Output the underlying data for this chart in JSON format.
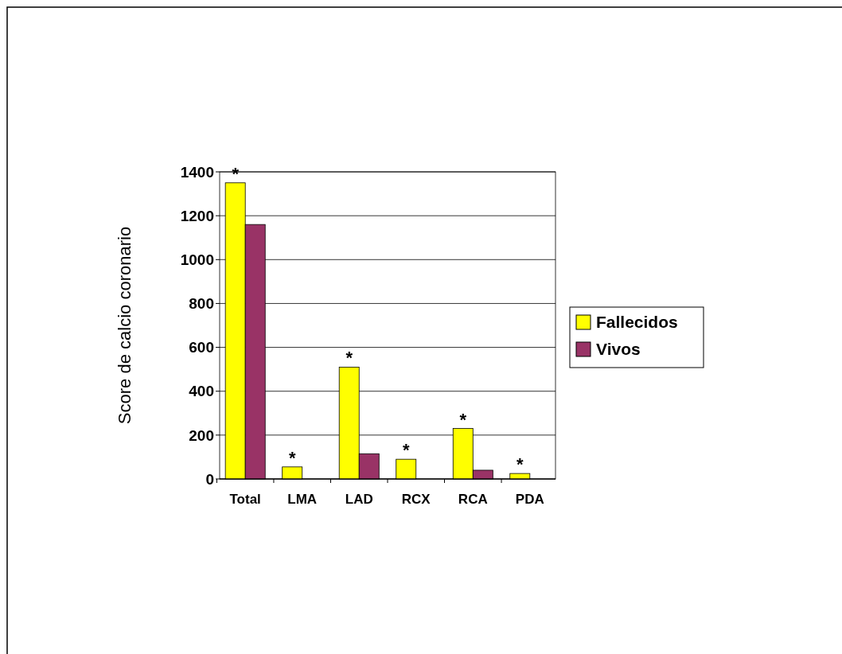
{
  "chart_data": {
    "type": "bar",
    "ylabel": "Score de calcio coronario",
    "categories": [
      "Total",
      "LMA",
      "LAD",
      "RCX",
      "RCA",
      "PDA"
    ],
    "series": [
      {
        "name": "Fallecidos",
        "color": "#ffff00",
        "values": [
          1350,
          55,
          510,
          90,
          230,
          25
        ]
      },
      {
        "name": "Vivos",
        "color": "#993366",
        "values": [
          1160,
          null,
          115,
          null,
          40,
          null
        ]
      }
    ],
    "ylim": [
      0,
      1400
    ],
    "yticks": [
      0,
      200,
      400,
      600,
      800,
      1000,
      1200,
      1400
    ],
    "grid": "y",
    "legend": "right",
    "annotations": [
      {
        "text": "*",
        "x": "Total",
        "y": 1350
      },
      {
        "text": "*",
        "x": "LMA",
        "y": 55
      },
      {
        "text": "*",
        "x": "LAD",
        "y": 510
      },
      {
        "text": "*",
        "x": "RCX",
        "y": 90
      },
      {
        "text": "*",
        "x": "RCA",
        "y": 230
      },
      {
        "text": "*",
        "x": "PDA",
        "y": 25
      }
    ]
  }
}
